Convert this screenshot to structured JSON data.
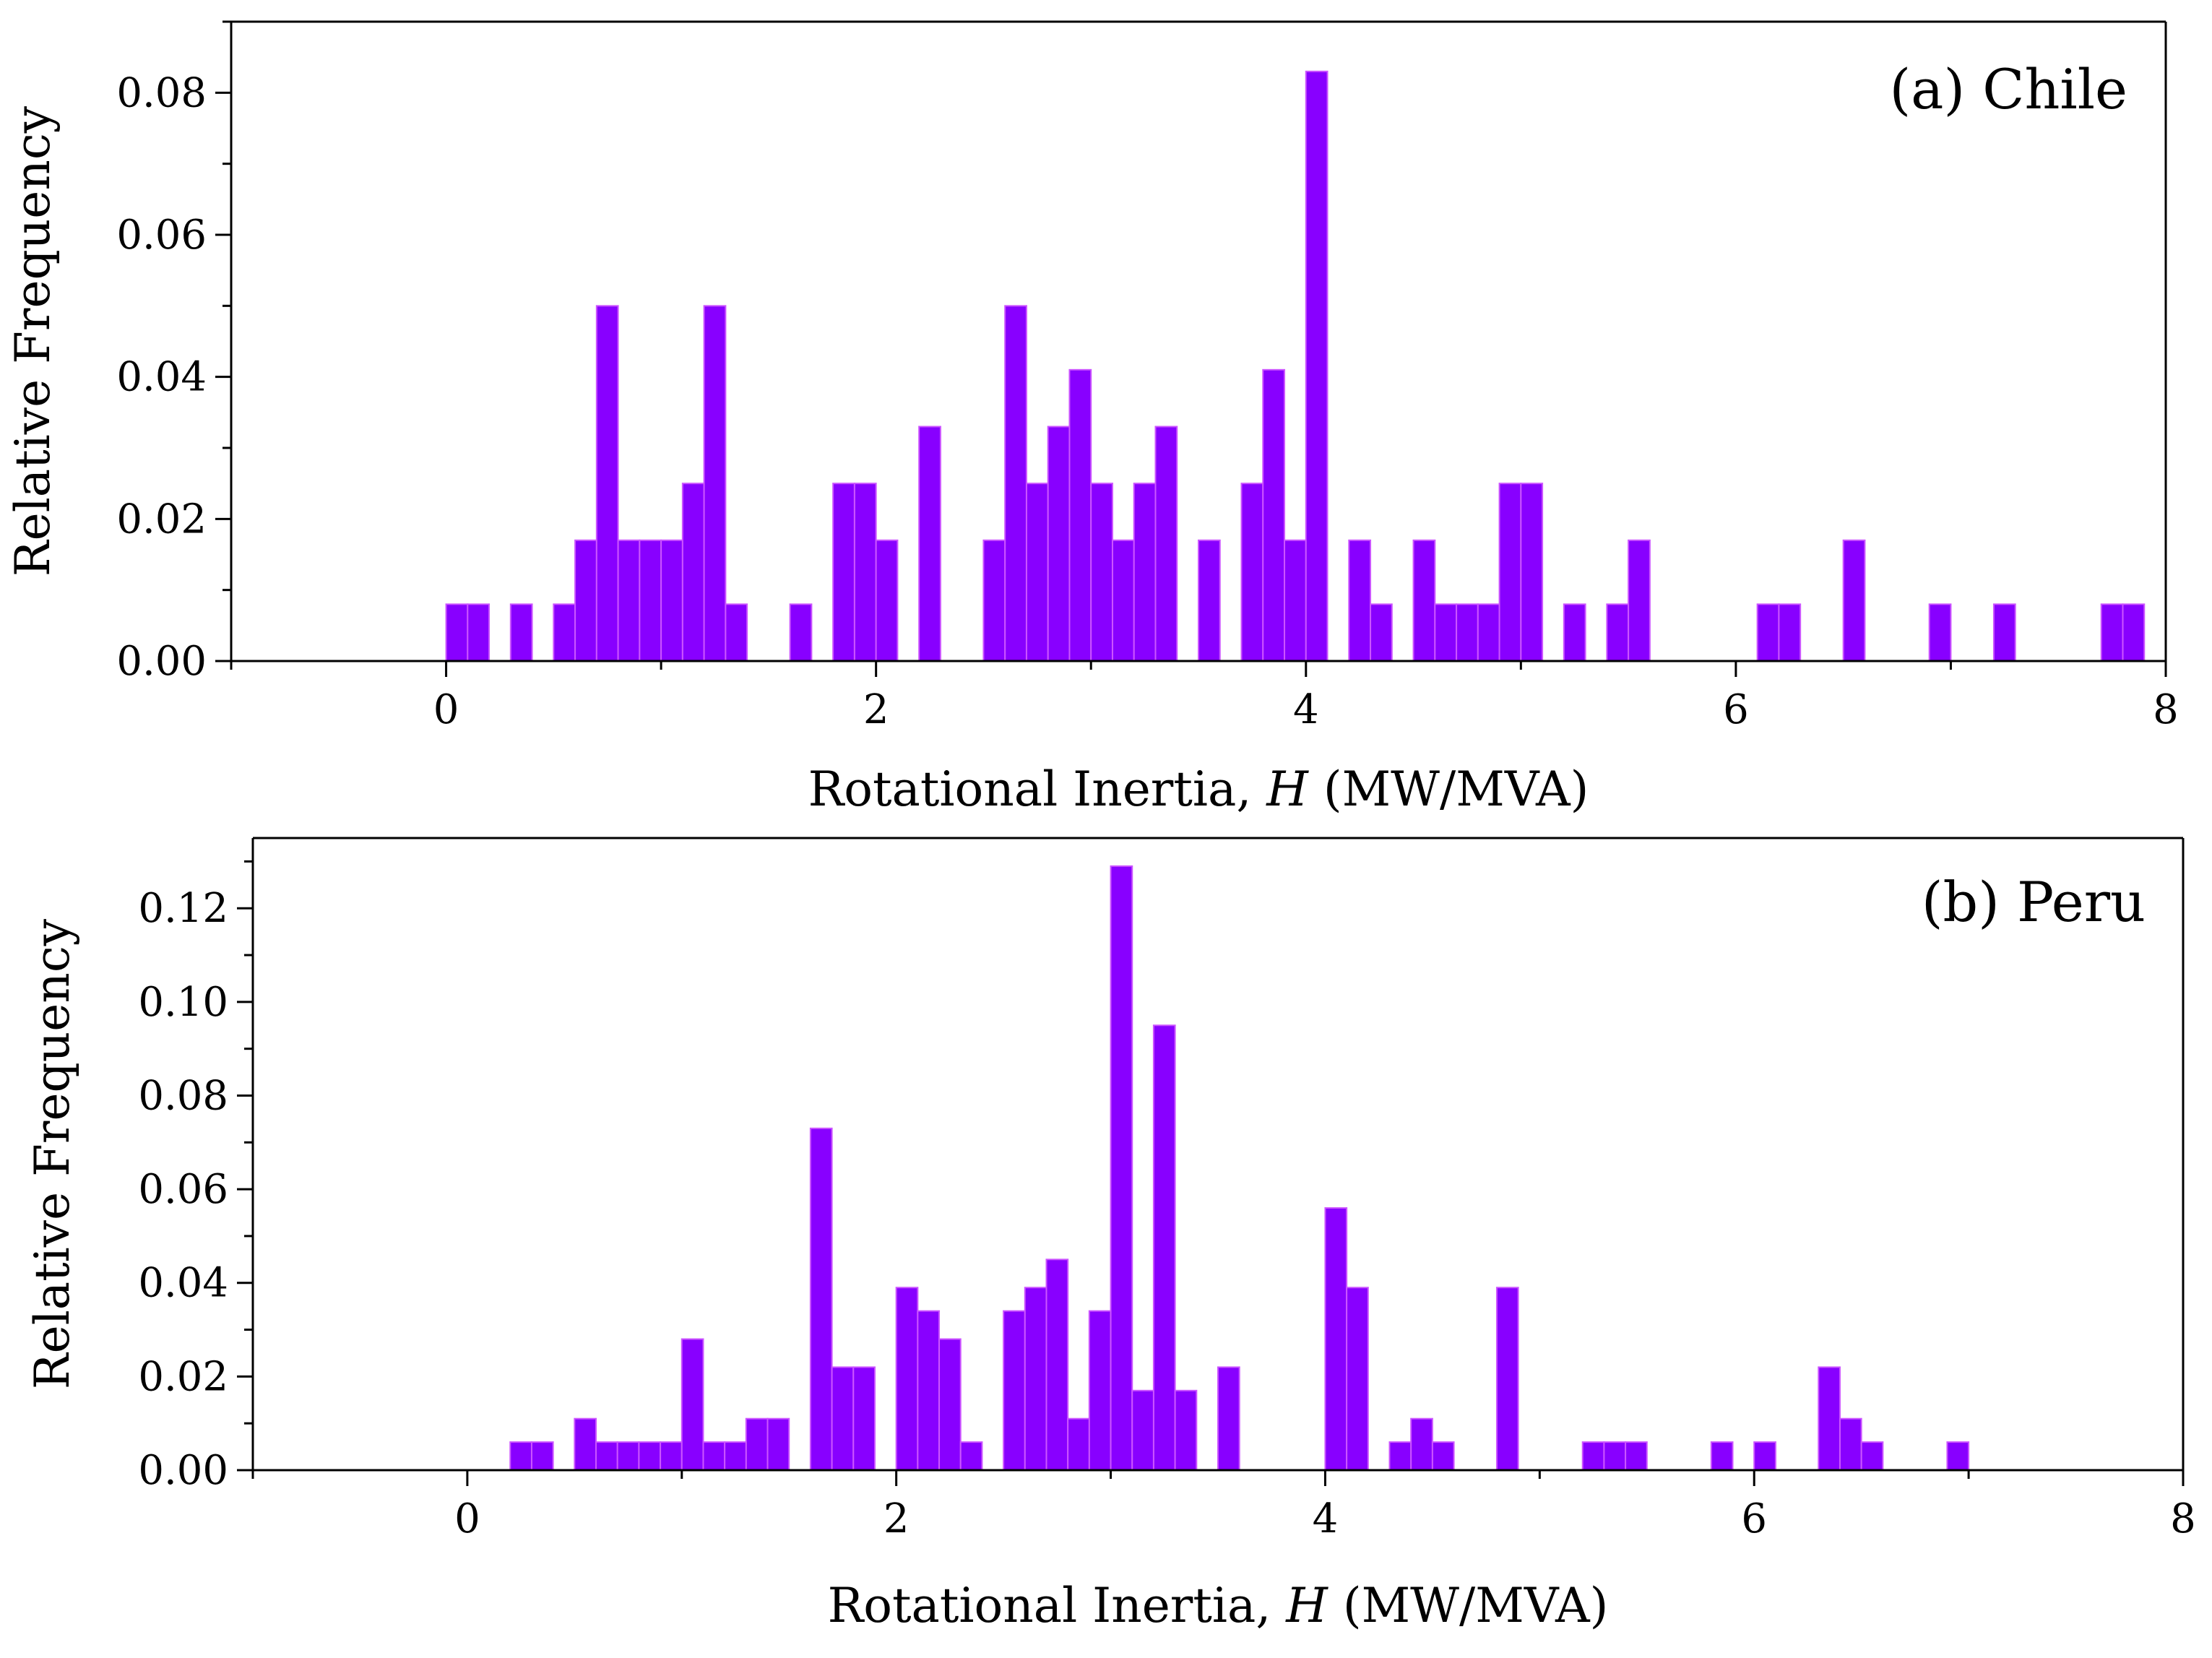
{
  "chart_data": [
    {
      "type": "bar",
      "panel": "top",
      "title": "",
      "annotation": "(a) Chile",
      "xlabel": "Rotational Inertia, H (MW/MVA)",
      "xlabel_parts": [
        "Rotational Inertia, ",
        "H",
        " (MW/MVA)"
      ],
      "ylabel": "Relative Frequency",
      "xlim": [
        -1,
        8
      ],
      "ylim": [
        0,
        0.09
      ],
      "bin_width": 0.1,
      "x_ticks": [
        "0",
        "2",
        "4",
        "6",
        "8"
      ],
      "y_ticks": [
        "0.00",
        "0.02",
        "0.04",
        "0.06",
        "0.08"
      ],
      "y_minor_step": 0.01,
      "bins_start": [
        0.0,
        0.1,
        0.3,
        0.5,
        0.6,
        0.7,
        0.8,
        0.9,
        1.0,
        1.1,
        1.2,
        1.3,
        1.6,
        1.8,
        1.9,
        2.0,
        2.2,
        2.5,
        2.6,
        2.7,
        2.8,
        2.9,
        3.0,
        3.1,
        3.2,
        3.3,
        3.5,
        3.7,
        3.8,
        3.9,
        4.0,
        4.2,
        4.3,
        4.5,
        4.6,
        4.7,
        4.8,
        4.9,
        5.0,
        5.2,
        5.4,
        5.5,
        6.1,
        6.2,
        6.5,
        6.9,
        7.2,
        7.7,
        7.8
      ],
      "values": [
        0.008,
        0.008,
        0.008,
        0.008,
        0.017,
        0.05,
        0.017,
        0.017,
        0.017,
        0.025,
        0.05,
        0.008,
        0.008,
        0.025,
        0.025,
        0.017,
        0.033,
        0.017,
        0.05,
        0.025,
        0.033,
        0.041,
        0.025,
        0.017,
        0.025,
        0.033,
        0.017,
        0.025,
        0.041,
        0.017,
        0.083,
        0.017,
        0.008,
        0.017,
        0.008,
        0.008,
        0.008,
        0.025,
        0.025,
        0.008,
        0.008,
        0.017,
        0.008,
        0.008,
        0.017,
        0.008,
        0.008,
        0.008,
        0.008
      ]
    },
    {
      "type": "bar",
      "panel": "bottom",
      "title": "",
      "annotation": "(b) Peru",
      "xlabel": "Rotational Inertia, H (MW/MVA)",
      "xlabel_parts": [
        "Rotational Inertia, ",
        "H",
        " (MW/MVA)"
      ],
      "ylabel": "Relative Frequency",
      "xlim": [
        -1,
        8
      ],
      "ylim": [
        0,
        0.135
      ],
      "bin_width": 0.1,
      "x_ticks": [
        "0",
        "2",
        "4",
        "6",
        "8"
      ],
      "y_ticks": [
        "0.00",
        "0.02",
        "0.04",
        "0.06",
        "0.08",
        "0.10",
        "0.12"
      ],
      "y_minor_step": 0.01,
      "bins_start": [
        0.2,
        0.3,
        0.5,
        0.6,
        0.7,
        0.8,
        0.9,
        1.0,
        1.1,
        1.2,
        1.3,
        1.4,
        1.6,
        1.7,
        1.8,
        2.0,
        2.1,
        2.2,
        2.3,
        2.5,
        2.6,
        2.7,
        2.8,
        2.9,
        3.0,
        3.1,
        3.2,
        3.3,
        3.5,
        4.0,
        4.1,
        4.3,
        4.4,
        4.5,
        4.8,
        5.2,
        5.3,
        5.4,
        5.8,
        6.0,
        6.3,
        6.4,
        6.5,
        6.9
      ],
      "values": [
        0.006,
        0.006,
        0.011,
        0.006,
        0.006,
        0.006,
        0.006,
        0.028,
        0.006,
        0.006,
        0.011,
        0.011,
        0.073,
        0.022,
        0.022,
        0.039,
        0.034,
        0.028,
        0.006,
        0.034,
        0.039,
        0.045,
        0.011,
        0.034,
        0.129,
        0.017,
        0.095,
        0.017,
        0.022,
        0.056,
        0.039,
        0.006,
        0.011,
        0.006,
        0.039,
        0.006,
        0.006,
        0.006,
        0.006,
        0.006,
        0.022,
        0.011,
        0.006,
        0.006
      ]
    }
  ]
}
